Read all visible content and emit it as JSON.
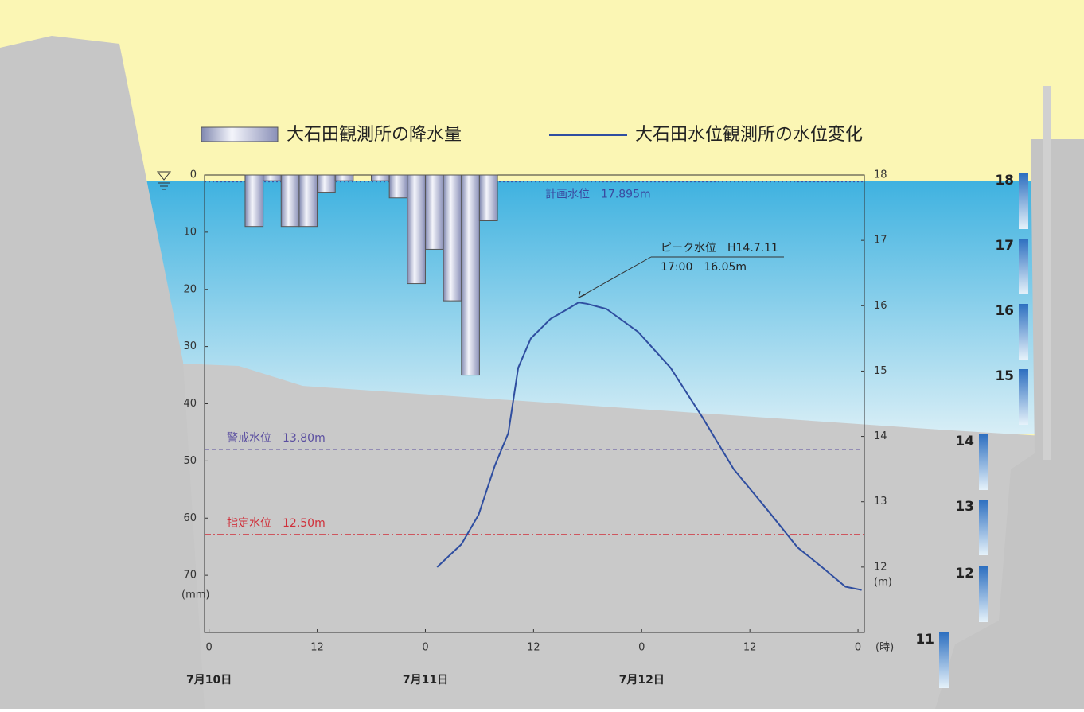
{
  "chart_data": {
    "type": "bar-line",
    "legend": [
      "大石田観測所の降水量",
      "大石田水位観測所の水位変化"
    ],
    "x_unit": "(時)",
    "y_unit": "(mm)",
    "y2_unit": "(m)",
    "xlim": [
      -0.5,
      72.7
    ],
    "xticks": [
      0,
      12,
      {
        "value": 24,
        "label": "0"
      },
      {
        "value": 36,
        "label": "12"
      },
      {
        "value": 48,
        "label": "0"
      },
      {
        "value": 60,
        "label": "12"
      },
      {
        "value": 72,
        "label": "0"
      }
    ],
    "dates": [
      {
        "value": 0,
        "label": "7月10日"
      },
      {
        "value": 24,
        "label": "7月11日"
      },
      {
        "value": 48,
        "label": "7月12日"
      }
    ],
    "ylim": [
      0,
      80
    ],
    "y_inverted": true,
    "yticks": [
      0,
      10,
      20,
      30,
      40,
      50,
      60,
      70
    ],
    "y2lim": [
      11,
      18
    ],
    "y2ticks": [
      12,
      13,
      14,
      15,
      16,
      17,
      18
    ],
    "series": [
      {
        "name": "大石田観測所の降水量",
        "kind": "bar",
        "axis": "y",
        "color": "#9ea6c8",
        "x": [
          5,
          7,
          9,
          11,
          13,
          15,
          19,
          21,
          23,
          25,
          27,
          29,
          31
        ],
        "values": [
          9,
          1,
          9,
          9,
          3,
          1,
          1,
          4,
          19,
          13,
          22,
          35,
          8
        ]
      },
      {
        "name": "大石田水位観測所の水位変化",
        "kind": "line",
        "axis": "y2",
        "color": "#2f4ea0",
        "x": [
          25.3,
          28,
          29.9,
          31.7,
          33.2,
          34.3,
          35.7,
          37.9,
          39.8,
          41,
          41.9,
          44.1,
          47.6,
          51.2,
          54.7,
          58.2,
          61.8,
          65.3,
          68,
          70.6,
          72.4
        ],
        "values": [
          12.0,
          12.35,
          12.8,
          13.55,
          14.05,
          15.05,
          15.5,
          15.8,
          15.95,
          16.05,
          16.03,
          15.95,
          15.6,
          15.05,
          14.3,
          13.5,
          12.9,
          12.3,
          12.0,
          11.7,
          11.65
        ]
      }
    ],
    "reference_lines": [
      {
        "label": "計画水位　17.895m",
        "value": 17.895,
        "axis": "y2",
        "color": "#3a4aa0",
        "style": "dotted"
      },
      {
        "label": "警戒水位　13.80m",
        "value": 13.8,
        "axis": "y2",
        "color": "#5a4ea0",
        "style": "dashed"
      },
      {
        "label": "指定水位　12.50m",
        "value": 12.5,
        "axis": "y2",
        "color": "#d0303a",
        "style": "dashdot"
      }
    ],
    "annotation": {
      "lines": [
        "ピーク水位　H14.7.11",
        "17:00　16.05m"
      ],
      "x": 41,
      "y": 16.05,
      "axis": "y2"
    },
    "gauge_marks": [
      18,
      17,
      16,
      15,
      14,
      13,
      12,
      11
    ]
  }
}
